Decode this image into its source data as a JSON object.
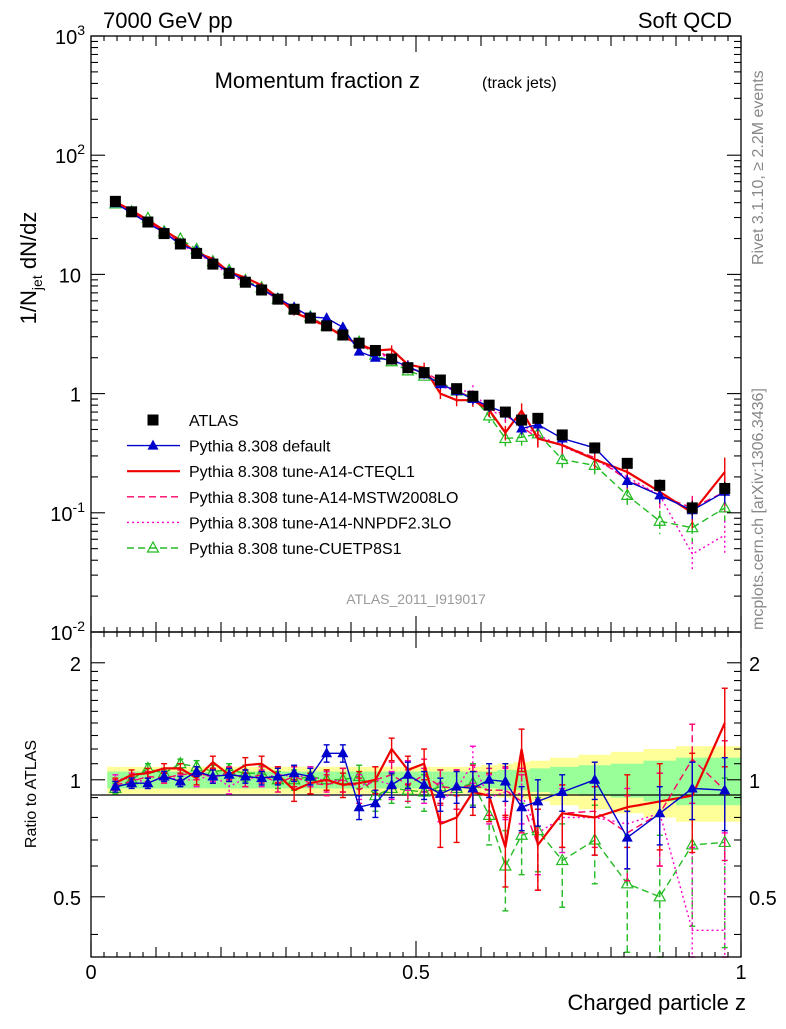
{
  "header": {
    "beam": "7000 GeV pp",
    "process": "Soft QCD",
    "side_rivet": "Rivet 3.1.10, ≥ 2.2M events",
    "side_mcplots": "mcplots.cern.ch [arXiv:1306.3436]"
  },
  "main_plot": {
    "title_main": "Momentum fraction z",
    "title_sub": "(track jets)",
    "ylabel_pre": "1/N",
    "ylabel_sub": "jet",
    "ylabel_post": " dN/dz",
    "analysis_id": "ATLAS_2011_I919017",
    "ytick_labels": [
      "10^{-2}",
      "10^{-1}",
      "1",
      "10",
      "10^{2}",
      "10^{3}"
    ]
  },
  "ratio_plot": {
    "ylabel": "Ratio to ATLAS",
    "ytick_labels": [
      "0.5",
      "1",
      "2"
    ],
    "xtick_labels": [
      "0",
      "0.5",
      "1"
    ],
    "xlabel": "Charged particle z"
  },
  "legend": [
    {
      "label": "ATLAS",
      "color": "#000000",
      "marker": "square",
      "line": "none"
    },
    {
      "label": "Pythia 8.308 default",
      "color": "#0000cc",
      "marker": "triangle",
      "line": "solid"
    },
    {
      "label": "Pythia 8.308 tune-A14-CTEQL1",
      "color": "#ee0000",
      "marker": "none",
      "line": "solid"
    },
    {
      "label": "Pythia 8.308 tune-A14-MSTW2008LO",
      "color": "#ff0066",
      "marker": "none",
      "line": "dashed"
    },
    {
      "label": "Pythia 8.308 tune-A14-NNPDF2.3LO",
      "color": "#ff00cc",
      "marker": "none",
      "line": "dotted"
    },
    {
      "label": "Pythia 8.308 tune-CUETP8S1",
      "color": "#22bb22",
      "marker": "open-triangle",
      "line": "dashed"
    }
  ],
  "chart_data": {
    "type": "line",
    "xlabel": "Charged particle z",
    "ylabel": "1/N_jet dN/dz",
    "xlim": [
      0,
      1
    ],
    "ylim": [
      0.01,
      1000
    ],
    "yscale": "log",
    "ratio_ylim": [
      0.35,
      2.4
    ],
    "ratio_yscale": "log",
    "grid": false,
    "legend_position": "middle-left",
    "x": [
      0.0375,
      0.0625,
      0.0875,
      0.1125,
      0.1375,
      0.1625,
      0.1875,
      0.2125,
      0.2375,
      0.2625,
      0.2875,
      0.3125,
      0.3375,
      0.3625,
      0.3875,
      0.4125,
      0.4375,
      0.4625,
      0.4875,
      0.5125,
      0.5375,
      0.5625,
      0.5875,
      0.6125,
      0.6375,
      0.6625,
      0.6875,
      0.725,
      0.775,
      0.825,
      0.875,
      0.925,
      0.975
    ],
    "series": [
      {
        "name": "ATLAS",
        "color": "#000000",
        "values": [
          41,
          33.5,
          27.5,
          22,
          18,
          15,
          12.2,
          10.2,
          8.6,
          7.4,
          6.2,
          5.1,
          4.3,
          3.7,
          3.1,
          2.65,
          2.3,
          1.95,
          1.65,
          1.5,
          1.3,
          1.1,
          0.95,
          0.8,
          0.7,
          0.6,
          0.62,
          0.45,
          0.35,
          0.26,
          0.17,
          0.11,
          0.16
        ],
        "band_stat": [
          0.05,
          0.05,
          0.05,
          0.05,
          0.05,
          0.05,
          0.05,
          0.05,
          0.05,
          0.05,
          0.05,
          0.05,
          0.05,
          0.05,
          0.05,
          0.05,
          0.05,
          0.05,
          0.05,
          0.05,
          0.05,
          0.05,
          0.05,
          0.05,
          0.06,
          0.06,
          0.07,
          0.08,
          0.09,
          0.1,
          0.12,
          0.14,
          0.14
        ],
        "band_total": [
          0.08,
          0.08,
          0.08,
          0.08,
          0.08,
          0.08,
          0.08,
          0.08,
          0.08,
          0.08,
          0.08,
          0.08,
          0.08,
          0.08,
          0.08,
          0.08,
          0.08,
          0.08,
          0.08,
          0.08,
          0.08,
          0.08,
          0.08,
          0.09,
          0.1,
          0.11,
          0.12,
          0.14,
          0.16,
          0.18,
          0.2,
          0.22,
          0.22
        ]
      },
      {
        "name": "Pythia 8.308 default",
        "color": "#0000cc",
        "values": [
          39.5,
          32.8,
          26.8,
          22.5,
          17.8,
          15.8,
          12.5,
          10.5,
          8.8,
          7.5,
          6.3,
          5.3,
          4.4,
          4.3,
          3.6,
          2.25,
          2.0,
          1.9,
          1.7,
          1.45,
          1.2,
          1.05,
          0.9,
          0.78,
          0.69,
          0.51,
          0.55,
          0.42,
          0.35,
          0.185,
          0.14,
          0.105,
          0.15
        ],
        "ratio": [
          0.96,
          0.98,
          0.98,
          1.02,
          0.99,
          1.05,
          1.02,
          1.03,
          1.02,
          1.01,
          1.02,
          1.04,
          1.02,
          1.17,
          1.17,
          0.85,
          0.87,
          0.97,
          1.03,
          0.97,
          0.92,
          0.96,
          0.95,
          1.0,
          0.99,
          0.85,
          0.88,
          0.93,
          1.0,
          0.71,
          0.82,
          0.95,
          0.94
        ],
        "ratio_err": [
          0.03,
          0.03,
          0.03,
          0.03,
          0.03,
          0.03,
          0.04,
          0.04,
          0.04,
          0.04,
          0.05,
          0.05,
          0.05,
          0.06,
          0.06,
          0.06,
          0.07,
          0.07,
          0.08,
          0.08,
          0.09,
          0.09,
          0.1,
          0.1,
          0.11,
          0.11,
          0.12,
          0.1,
          0.11,
          0.12,
          0.14,
          0.16,
          0.2
        ]
      },
      {
        "name": "Pythia 8.308 tune-A14-CTEQL1",
        "color": "#ee0000",
        "values": [
          40.5,
          34.5,
          28.5,
          23.5,
          19.2,
          15.2,
          13.5,
          10.5,
          9.4,
          8.1,
          6.4,
          4.8,
          4.2,
          3.7,
          3.0,
          2.6,
          2.3,
          2.35,
          1.75,
          1.65,
          1.0,
          0.88,
          0.88,
          0.73,
          0.47,
          0.72,
          0.42,
          0.37,
          0.28,
          0.22,
          0.15,
          0.1,
          0.22
        ],
        "ratio": [
          0.98,
          1.03,
          1.04,
          1.07,
          1.07,
          1.01,
          1.11,
          1.03,
          1.09,
          1.1,
          1.03,
          0.94,
          0.98,
          1.0,
          0.97,
          0.98,
          1.0,
          1.2,
          1.06,
          1.1,
          0.77,
          0.8,
          0.93,
          0.91,
          0.67,
          1.2,
          0.68,
          0.82,
          0.8,
          0.85,
          0.88,
          0.91,
          1.4
        ],
        "ratio_err": [
          0.03,
          0.03,
          0.03,
          0.03,
          0.03,
          0.04,
          0.04,
          0.04,
          0.05,
          0.05,
          0.05,
          0.06,
          0.06,
          0.06,
          0.07,
          0.07,
          0.08,
          0.08,
          0.09,
          0.1,
          0.1,
          0.11,
          0.12,
          0.13,
          0.14,
          0.15,
          0.16,
          0.15,
          0.16,
          0.18,
          0.22,
          0.26,
          0.32
        ]
      },
      {
        "name": "Pythia 8.308 tune-A14-MSTW2008LO",
        "color": "#ff0066",
        "values": [
          40,
          33,
          28,
          22.3,
          18.5,
          15.6,
          12.4,
          10.6,
          8.7,
          7.6,
          6.1,
          5.2,
          4.2,
          3.6,
          3.1,
          2.5,
          2.3,
          2.0,
          1.6,
          1.55,
          1.25,
          1.05,
          0.92,
          0.75,
          0.66,
          0.53,
          0.42,
          0.37,
          0.29,
          0.19,
          0.14,
          0.11,
          0.15
        ],
        "ratio": [
          0.97,
          0.99,
          1.02,
          1.01,
          1.03,
          1.04,
          1.02,
          1.04,
          1.01,
          1.03,
          0.98,
          1.02,
          0.98,
          0.97,
          1.0,
          0.94,
          1.0,
          1.03,
          0.97,
          1.03,
          0.96,
          0.95,
          0.97,
          0.94,
          0.94,
          0.88,
          0.68,
          0.82,
          0.83,
          0.73,
          0.82,
          1.13,
          0.94
        ],
        "ratio_err": [
          0.03,
          0.03,
          0.03,
          0.03,
          0.03,
          0.04,
          0.04,
          0.04,
          0.05,
          0.05,
          0.05,
          0.06,
          0.06,
          0.06,
          0.07,
          0.07,
          0.08,
          0.08,
          0.09,
          0.1,
          0.1,
          0.11,
          0.12,
          0.13,
          0.14,
          0.15,
          0.16,
          0.15,
          0.16,
          0.18,
          0.22,
          0.26,
          0.32
        ]
      },
      {
        "name": "Pythia 8.308 tune-A14-NNPDF2.3LO",
        "color": "#ff00cc",
        "values": [
          41,
          34,
          27,
          22.5,
          18,
          15,
          12.6,
          9.8,
          8.7,
          7.5,
          6.4,
          5.2,
          4.4,
          3.65,
          3.1,
          2.55,
          2.3,
          1.9,
          1.7,
          1.45,
          1.15,
          1.05,
          1.05,
          0.72,
          0.65,
          0.55,
          0.45,
          0.36,
          0.28,
          0.2,
          0.14,
          0.045,
          0.065
        ],
        "ratio": [
          1.0,
          1.01,
          0.98,
          1.02,
          1.0,
          1.0,
          1.03,
          0.96,
          1.01,
          1.01,
          1.03,
          1.02,
          1.02,
          0.99,
          1.0,
          0.96,
          1.0,
          0.97,
          1.03,
          0.97,
          0.88,
          0.95,
          1.1,
          0.9,
          0.93,
          0.92,
          0.73,
          0.8,
          0.8,
          0.77,
          0.82,
          0.41,
          0.41
        ],
        "ratio_err": [
          0.03,
          0.03,
          0.03,
          0.03,
          0.03,
          0.04,
          0.04,
          0.04,
          0.05,
          0.05,
          0.05,
          0.06,
          0.06,
          0.06,
          0.07,
          0.07,
          0.08,
          0.08,
          0.09,
          0.1,
          0.1,
          0.11,
          0.12,
          0.13,
          0.14,
          0.15,
          0.16,
          0.15,
          0.16,
          0.18,
          0.22,
          0.26,
          0.32
        ]
      },
      {
        "name": "Pythia 8.308 tune-CUETP8S1",
        "color": "#22bb22",
        "values": [
          39,
          33.5,
          29.5,
          22.8,
          19.8,
          16.2,
          12.8,
          10.8,
          8.9,
          7.7,
          6.2,
          5.1,
          4.4,
          3.7,
          3.1,
          2.7,
          2.1,
          1.85,
          1.55,
          1.4,
          1.25,
          1.05,
          0.93,
          0.65,
          0.42,
          0.43,
          0.46,
          0.28,
          0.25,
          0.14,
          0.085,
          0.075,
          0.11
        ],
        "ratio": [
          0.95,
          1.0,
          1.07,
          1.04,
          1.1,
          1.08,
          1.05,
          1.06,
          1.04,
          1.04,
          1.0,
          1.0,
          1.02,
          1.0,
          1.0,
          1.02,
          0.91,
          0.95,
          0.94,
          0.93,
          0.96,
          0.95,
          0.98,
          0.81,
          0.6,
          0.72,
          0.74,
          0.62,
          0.7,
          0.54,
          0.5,
          0.68,
          0.69
        ],
        "ratio_err": [
          0.03,
          0.03,
          0.03,
          0.03,
          0.03,
          0.04,
          0.04,
          0.04,
          0.05,
          0.05,
          0.05,
          0.06,
          0.06,
          0.06,
          0.07,
          0.07,
          0.08,
          0.08,
          0.09,
          0.1,
          0.1,
          0.11,
          0.12,
          0.13,
          0.14,
          0.15,
          0.16,
          0.15,
          0.16,
          0.18,
          0.22,
          0.26,
          0.32
        ]
      }
    ]
  }
}
